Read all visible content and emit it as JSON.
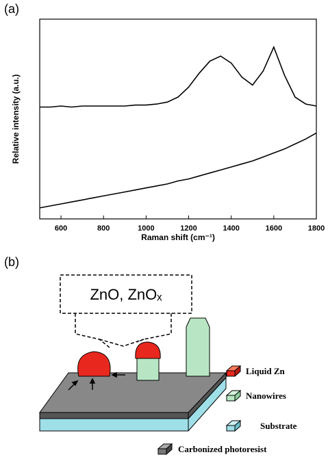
{
  "chart_data": {
    "type": "line",
    "panel_label": "(a)",
    "xlabel": "Raman shift (cm⁻¹)",
    "ylabel": "Relative intensity (a.u.)",
    "x": [
      500,
      550,
      600,
      650,
      700,
      750,
      800,
      850,
      900,
      950,
      1000,
      1050,
      1100,
      1150,
      1200,
      1250,
      1300,
      1350,
      1400,
      1450,
      1500,
      1550,
      1600,
      1650,
      1700,
      1750,
      1800
    ],
    "series": [
      {
        "color": "#000000",
        "values": [
          56,
          56,
          56.5,
          56,
          56.5,
          56.5,
          56.5,
          56.5,
          56.5,
          57,
          57,
          57.5,
          58.5,
          61,
          66,
          73,
          79,
          81.5,
          78,
          71,
          67,
          74,
          86,
          72,
          61,
          57.5,
          56.5
        ]
      },
      {
        "color": "#000000",
        "values": [
          5.5,
          6.5,
          7.5,
          8.5,
          9.5,
          10.5,
          11.5,
          12.5,
          13.5,
          14.5,
          15.5,
          16.5,
          17.5,
          19,
          20,
          21.5,
          23,
          24.5,
          26,
          27.5,
          29,
          31,
          33,
          35,
          37.5,
          40,
          43
        ]
      }
    ],
    "xlim": [
      500,
      1800
    ],
    "xticks": [
      600,
      800,
      1000,
      1200,
      1400,
      1600,
      1800
    ],
    "ylim": [
      0,
      100
    ]
  },
  "diagram": {
    "panel_label": "(b)",
    "callout": "ZnO, ZnOₓ",
    "legend": [
      "Liquid Zn",
      "Nanowires",
      "Substrate",
      "Carbonized photoresist"
    ]
  }
}
